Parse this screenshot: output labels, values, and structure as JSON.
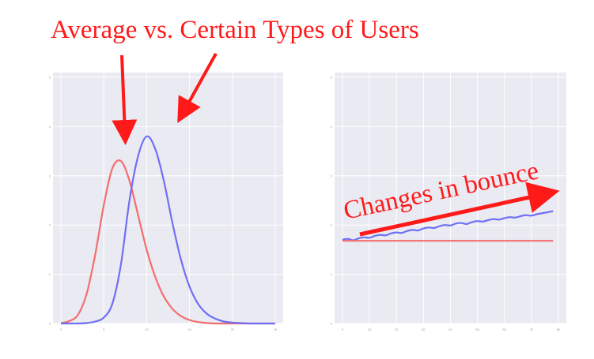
{
  "title": "Average vs. Certain Types of Users",
  "annotation": "Changes in bounce",
  "colors": {
    "annotation": "#ff1a1a",
    "panel_bg": "#eaeaf2",
    "grid": "#ffffff",
    "blue": "#6f6ff5",
    "red": "#f26e6e"
  },
  "chart_data": [
    {
      "type": "line",
      "title": "",
      "xlabel": "",
      "ylabel": "",
      "xlim": [
        0,
        25
      ],
      "ylim": [
        0,
        5
      ],
      "grid": true,
      "xticks": [
        "0",
        "5",
        "10",
        "15",
        "20",
        "25"
      ],
      "yticks": [
        "0",
        "1",
        "2",
        "3",
        "4",
        "5"
      ],
      "series": [
        {
          "color": "#f26e6e",
          "x": [
            0,
            1,
            2,
            3,
            4,
            5,
            6,
            7,
            8,
            9,
            10,
            11,
            12,
            13,
            14,
            15,
            16,
            17,
            18,
            19,
            20,
            21,
            22,
            23,
            24,
            25
          ],
          "y": [
            0.01,
            0.05,
            0.18,
            0.6,
            1.4,
            2.4,
            3.15,
            3.3,
            2.9,
            2.2,
            1.5,
            0.95,
            0.55,
            0.3,
            0.15,
            0.07,
            0.03,
            0.01,
            0,
            0,
            0,
            0,
            0,
            0,
            0,
            0
          ]
        },
        {
          "color": "#6f6ff5",
          "x": [
            0,
            1,
            2,
            3,
            4,
            5,
            6,
            7,
            8,
            9,
            10,
            11,
            12,
            13,
            14,
            15,
            16,
            17,
            18,
            19,
            20,
            21,
            22,
            23,
            24,
            25
          ],
          "y": [
            0,
            0,
            0,
            0.01,
            0.04,
            0.12,
            0.4,
            1.2,
            2.5,
            3.4,
            3.8,
            3.55,
            2.9,
            2.05,
            1.3,
            0.75,
            0.4,
            0.2,
            0.1,
            0.04,
            0.02,
            0.01,
            0,
            0,
            0,
            0
          ]
        }
      ]
    },
    {
      "type": "line",
      "title": "",
      "xlabel": "",
      "ylabel": "",
      "xlim": [
        0,
        80
      ],
      "ylim": [
        0,
        5
      ],
      "grid": true,
      "xticks": [
        "0",
        "10",
        "20",
        "30",
        "40",
        "50",
        "60",
        "70",
        "80"
      ],
      "yticks": [
        "0",
        "1",
        "2",
        "3",
        "4",
        "5"
      ],
      "series": [
        {
          "color": "#6f6ff5",
          "x": [
            0,
            2,
            4,
            6,
            8,
            10,
            12,
            14,
            16,
            18,
            20,
            22,
            24,
            26,
            28,
            30,
            32,
            34,
            36,
            38,
            40,
            42,
            44,
            46,
            48,
            50,
            52,
            54,
            56,
            58,
            60,
            62,
            64,
            66,
            68,
            70,
            72,
            74,
            76,
            78
          ],
          "y": [
            1.7,
            1.72,
            1.69,
            1.73,
            1.75,
            1.74,
            1.78,
            1.8,
            1.79,
            1.83,
            1.85,
            1.84,
            1.88,
            1.9,
            1.89,
            1.93,
            1.95,
            1.94,
            1.98,
            2.0,
            1.99,
            2.03,
            2.04,
            2.02,
            2.06,
            2.08,
            2.07,
            2.1,
            2.12,
            2.11,
            2.14,
            2.16,
            2.15,
            2.18,
            2.2,
            2.19,
            2.22,
            2.24,
            2.26,
            2.28
          ]
        },
        {
          "color": "#f26e6e",
          "x": [
            0,
            78
          ],
          "y": [
            1.68,
            1.68
          ]
        }
      ]
    }
  ]
}
